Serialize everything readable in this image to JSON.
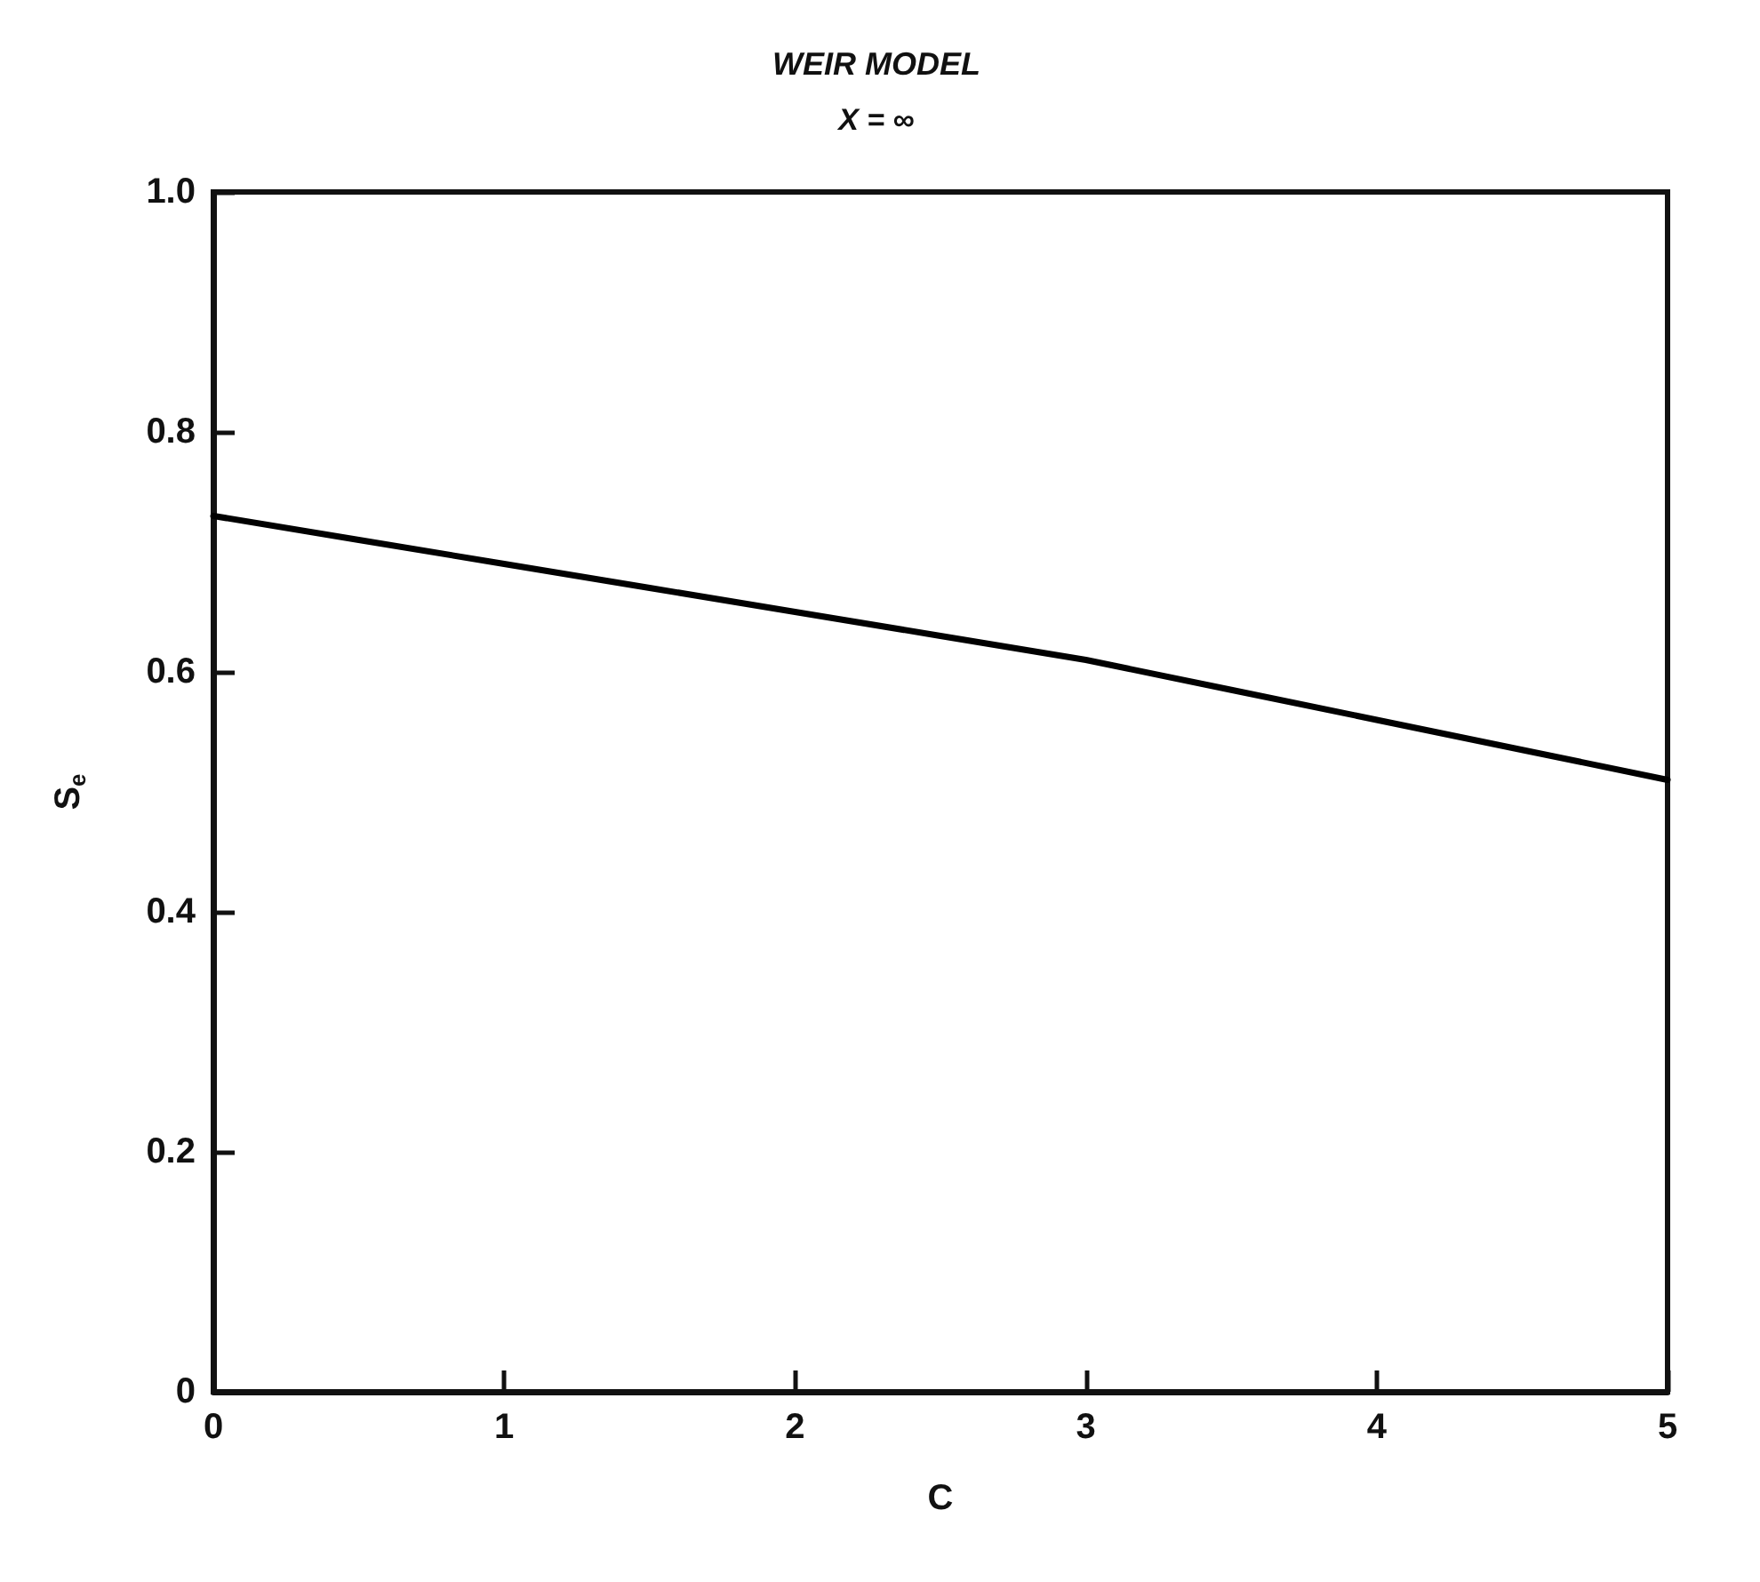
{
  "chart_data": {
    "type": "line",
    "title": "WEIR MODEL",
    "subtitle": "X = ∞",
    "xlabel": "C",
    "ylabel": "S$_{e}$",
    "x": [
      0,
      0.5,
      1,
      1.5,
      2,
      2.5,
      3,
      3.5,
      4,
      4.5,
      5
    ],
    "series": [
      {
        "color": "#000000",
        "values": [
          0.73,
          0.71,
          0.69,
          0.67,
          0.65,
          0.63,
          0.61,
          0.585,
          0.56,
          0.535,
          0.51
        ]
      }
    ],
    "xlim": [
      0,
      5
    ],
    "xticks": [
      0,
      1,
      2,
      3,
      4,
      5
    ],
    "ylim": [
      0,
      1
    ],
    "yticks": [
      0,
      0.2,
      0.4,
      0.6,
      0.8,
      {
        "value": 1,
        "label": "1.0"
      }
    ],
    "grid": false,
    "marker": "none",
    "line_style": "solid"
  }
}
